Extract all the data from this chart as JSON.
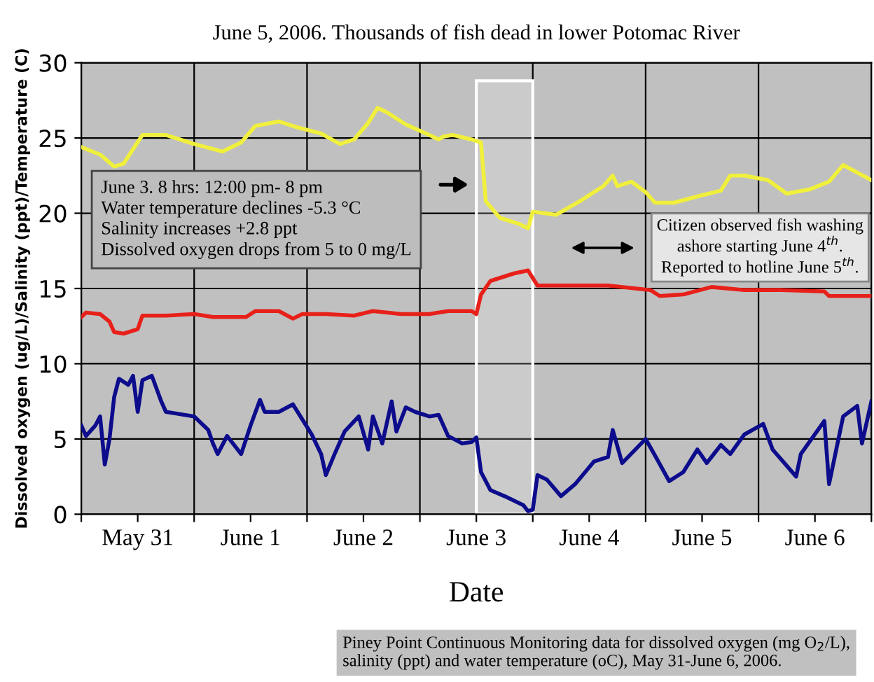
{
  "chart_data": {
    "type": "line",
    "title": "June 5, 2006. Thousands of fish dead in lower Potomac River",
    "xlabel": "Date",
    "ylabel": "Dissolved oxygen (ug/L)/Salinity (ppt)/Temperature (C)",
    "xlim": [
      "2006-05-31T00:00",
      "2006-06-07T00:00"
    ],
    "ylim": [
      0,
      30
    ],
    "yticks": [
      0,
      5,
      10,
      15,
      20,
      25,
      30
    ],
    "xticks": [
      {
        "value": "2006-05-31T00:00",
        "label": null
      },
      {
        "value": "2006-05-31T12:00",
        "label": "May 31"
      },
      {
        "value": "2006-06-01T00:00",
        "label": null
      },
      {
        "value": "2006-06-01T12:00",
        "label": "June 1"
      },
      {
        "value": "2006-06-02T00:00",
        "label": null
      },
      {
        "value": "2006-06-02T12:00",
        "label": "June 2"
      },
      {
        "value": "2006-06-03T00:00",
        "label": null
      },
      {
        "value": "2006-06-03T12:00",
        "label": "June 3"
      },
      {
        "value": "2006-06-04T00:00",
        "label": null
      },
      {
        "value": "2006-06-04T12:00",
        "label": "June 4"
      },
      {
        "value": "2006-06-05T00:00",
        "label": null
      },
      {
        "value": "2006-06-05T12:00",
        "label": "June 5"
      },
      {
        "value": "2006-06-06T00:00",
        "label": null
      },
      {
        "value": "2006-06-06T12:00",
        "label": "June 6"
      },
      {
        "value": "2006-06-07T00:00",
        "label": null
      }
    ],
    "grid": true,
    "line_style": "solid",
    "series": [
      {
        "color": "#f0f03c",
        "x": [
          "2006-05-31T00:00",
          "2006-05-31T04:00",
          "2006-05-31T07:00",
          "2006-05-31T09:00",
          "2006-05-31T13:00",
          "2006-05-31T18:00",
          "2006-06-01T00:00",
          "2006-06-01T06:00",
          "2006-06-01T10:00",
          "2006-06-01T13:00",
          "2006-06-01T18:00",
          "2006-06-01T22:00",
          "2006-06-02T03:00",
          "2006-06-02T07:00",
          "2006-06-02T10:00",
          "2006-06-02T13:00",
          "2006-06-02T15:00",
          "2006-06-02T17:00",
          "2006-06-02T21:00",
          "2006-06-03T02:00",
          "2006-06-03T04:00",
          "2006-06-03T05:00",
          "2006-06-03T07:00",
          "2006-06-03T11:00",
          "2006-06-03T13:00",
          "2006-06-03T14:00",
          "2006-06-03T17:00",
          "2006-06-03T21:00",
          "2006-06-03T23:00",
          "2006-06-04T00:00",
          "2006-06-04T05:00",
          "2006-06-04T10:00",
          "2006-06-04T15:00",
          "2006-06-04T17:00",
          "2006-06-04T18:00",
          "2006-06-04T21:00",
          "2006-06-05T00:00",
          "2006-06-05T02:00",
          "2006-06-05T06:00",
          "2006-06-05T12:00",
          "2006-06-05T16:00",
          "2006-06-05T18:00",
          "2006-06-05T21:00",
          "2006-06-06T02:00",
          "2006-06-06T06:00",
          "2006-06-06T11:00",
          "2006-06-06T15:00",
          "2006-06-06T18:00",
          "2006-06-06T21:00",
          "2006-06-07T00:00"
        ],
        "values": [
          24.4,
          23.9,
          23.1,
          23.3,
          25.2,
          25.2,
          24.6,
          24.1,
          24.7,
          25.8,
          26.1,
          25.7,
          25.3,
          24.6,
          24.9,
          26.0,
          27.0,
          26.7,
          25.9,
          25.2,
          24.9,
          25.1,
          25.2,
          24.9,
          24.7,
          20.8,
          19.7,
          19.3,
          19.0,
          20.1,
          19.9,
          20.8,
          21.8,
          22.5,
          21.8,
          22.1,
          21.4,
          20.7,
          20.7,
          21.2,
          21.5,
          22.5,
          22.5,
          22.2,
          21.3,
          21.6,
          22.1,
          23.2,
          22.7,
          22.2
        ]
      },
      {
        "color": "#e8201a",
        "x": [
          "2006-05-31T00:00",
          "2006-05-31T01:00",
          "2006-05-31T04:00",
          "2006-05-31T06:00",
          "2006-05-31T07:00",
          "2006-05-31T09:00",
          "2006-05-31T12:00",
          "2006-05-31T13:00",
          "2006-05-31T18:00",
          "2006-06-01T00:00",
          "2006-06-01T04:00",
          "2006-06-01T11:00",
          "2006-06-01T13:00",
          "2006-06-01T18:00",
          "2006-06-01T21:00",
          "2006-06-01T23:00",
          "2006-06-02T04:00",
          "2006-06-02T10:00",
          "2006-06-02T14:00",
          "2006-06-02T20:00",
          "2006-06-03T02:00",
          "2006-06-03T06:00",
          "2006-06-03T11:00",
          "2006-06-03T12:00",
          "2006-06-03T13:00",
          "2006-06-03T15:00",
          "2006-06-03T20:00",
          "2006-06-03T23:00",
          "2006-06-04T01:00",
          "2006-06-04T06:00",
          "2006-06-04T16:00",
          "2006-06-05T01:00",
          "2006-06-05T03:00",
          "2006-06-05T08:00",
          "2006-06-05T14:00",
          "2006-06-05T21:00",
          "2006-06-06T05:00",
          "2006-06-06T14:00",
          "2006-06-06T15:00",
          "2006-06-07T00:00"
        ],
        "values": [
          13.1,
          13.4,
          13.3,
          12.8,
          12.1,
          12.0,
          12.3,
          13.2,
          13.2,
          13.3,
          13.1,
          13.1,
          13.5,
          13.5,
          13.0,
          13.3,
          13.3,
          13.2,
          13.5,
          13.3,
          13.3,
          13.5,
          13.5,
          13.3,
          14.6,
          15.5,
          16.0,
          16.2,
          15.2,
          15.2,
          15.2,
          14.9,
          14.5,
          14.6,
          15.1,
          14.9,
          14.9,
          14.8,
          14.5,
          14.5
        ]
      },
      {
        "color": "#0c0c8c",
        "x": [
          "2006-05-31T00:00",
          "2006-05-31T01:00",
          "2006-05-31T03:00",
          "2006-05-31T04:00",
          "2006-05-31T05:00",
          "2006-05-31T06:00",
          "2006-05-31T07:00",
          "2006-05-31T08:00",
          "2006-05-31T10:00",
          "2006-05-31T11:00",
          "2006-05-31T12:00",
          "2006-05-31T13:00",
          "2006-05-31T15:00",
          "2006-05-31T17:00",
          "2006-05-31T18:00",
          "2006-06-01T00:00",
          "2006-06-01T03:00",
          "2006-06-01T04:00",
          "2006-06-01T05:00",
          "2006-06-01T07:00",
          "2006-06-01T10:00",
          "2006-06-01T12:00",
          "2006-06-01T14:00",
          "2006-06-01T15:00",
          "2006-06-01T18:00",
          "2006-06-01T21:00",
          "2006-06-02T01:00",
          "2006-06-02T03:00",
          "2006-06-02T04:00",
          "2006-06-02T06:00",
          "2006-06-02T08:00",
          "2006-06-02T11:00",
          "2006-06-02T13:00",
          "2006-06-02T14:00",
          "2006-06-02T16:00",
          "2006-06-02T18:00",
          "2006-06-02T19:00",
          "2006-06-02T21:00",
          "2006-06-02T23:00",
          "2006-06-03T02:00",
          "2006-06-03T04:00",
          "2006-06-03T06:00",
          "2006-06-03T09:00",
          "2006-06-03T11:00",
          "2006-06-03T12:00",
          "2006-06-03T13:00",
          "2006-06-03T15:00",
          "2006-06-03T18:00",
          "2006-06-03T22:00",
          "2006-06-03T23:00",
          "2006-06-04T00:00",
          "2006-06-04T01:00",
          "2006-06-04T03:00",
          "2006-06-04T06:00",
          "2006-06-04T09:00",
          "2006-06-04T13:00",
          "2006-06-04T16:00",
          "2006-06-04T17:00",
          "2006-06-04T19:00",
          "2006-06-05T00:00",
          "2006-06-05T02:00",
          "2006-06-05T05:00",
          "2006-06-05T08:00",
          "2006-06-05T11:00",
          "2006-06-05T13:00",
          "2006-06-05T16:00",
          "2006-06-05T18:00",
          "2006-06-05T21:00",
          "2006-06-06T01:00",
          "2006-06-06T03:00",
          "2006-06-06T08:00",
          "2006-06-06T09:00",
          "2006-06-06T14:00",
          "2006-06-06T15:00",
          "2006-06-06T17:00",
          "2006-06-06T18:00",
          "2006-06-06T21:00",
          "2006-06-06T22:00",
          "2006-06-07T00:00"
        ],
        "values": [
          5.9,
          5.2,
          5.9,
          6.5,
          3.3,
          5.0,
          7.8,
          9.0,
          8.6,
          9.2,
          6.8,
          8.9,
          9.2,
          7.5,
          6.8,
          6.5,
          5.6,
          4.7,
          4.0,
          5.2,
          4.0,
          5.9,
          7.6,
          6.8,
          6.8,
          7.3,
          5.3,
          4.0,
          2.6,
          4.1,
          5.5,
          6.5,
          4.3,
          6.5,
          4.7,
          7.5,
          5.5,
          7.1,
          6.8,
          6.5,
          6.6,
          5.2,
          4.7,
          4.8,
          5.1,
          2.8,
          1.6,
          1.2,
          0.6,
          0.2,
          0.3,
          2.6,
          2.3,
          1.2,
          2.0,
          3.5,
          3.8,
          5.6,
          3.4,
          5.0,
          3.9,
          2.2,
          2.8,
          4.3,
          3.4,
          4.6,
          4.0,
          5.3,
          6.0,
          4.3,
          2.5,
          4.0,
          6.2,
          2.0,
          5.0,
          6.5,
          7.2,
          4.7,
          7.5
        ]
      }
    ],
    "bands": [
      {
        "axis": "x",
        "from": "2006-06-03T12:00",
        "to": "2006-06-04T00:00",
        "color": "#ffffff"
      }
    ],
    "annotations": [
      "June 3. 8 hrs: 12:00 pm- 8 pm\nWater temperature declines -5.3 °C\nSalinity increases +2.8 ppt\nDissolved oxygen drops from 5 to 0 mg/L",
      "Citizen observed fish washing\nashore starting June 4$^{th}$.\nReported to hotline June 5$^{th}$.",
      "Piney Point Continuous Monitoring data for dissolved oxygen (mg O$_{2}$/L),\nsalinity (ppt) and water temperature (oC), May 31-June 6, 2006."
    ]
  }
}
